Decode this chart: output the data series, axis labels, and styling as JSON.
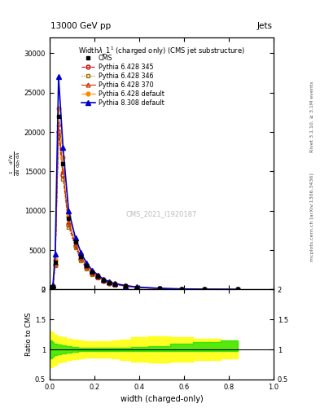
{
  "title": "13000 GeV pp",
  "title_right": "Jets",
  "plot_title": "Width$\\lambda\\_1^1$ (charged only) (CMS jet substructure)",
  "xlabel": "width (charged-only)",
  "watermark": "CMS_2021_I1920187",
  "rivet_label": "Rivet 3.1.10, ≥ 3.1M events",
  "arxiv_label": "mcplots.cern.ch [arXiv:1306.3436]",
  "ylim_main": [
    0,
    32000
  ],
  "ylim_ratio": [
    0.5,
    2.0
  ],
  "xlim": [
    0.0,
    1.0
  ],
  "yticks_main": [
    0,
    5000,
    10000,
    15000,
    20000,
    25000,
    30000
  ],
  "yticks_ratio": [
    0.5,
    1.0,
    1.5,
    2.0
  ],
  "cms_data_x": [
    0.005,
    0.015,
    0.025,
    0.04,
    0.06,
    0.085,
    0.115,
    0.14,
    0.165,
    0.19,
    0.215,
    0.24,
    0.265,
    0.29,
    0.34,
    0.39,
    0.49,
    0.59,
    0.69,
    0.84
  ],
  "cms_data_y": [
    200,
    400,
    3500,
    22000,
    16000,
    9000,
    6000,
    4200,
    3000,
    2200,
    1700,
    1200,
    900,
    700,
    460,
    280,
    130,
    65,
    30,
    12
  ],
  "py6_345_x": [
    0.005,
    0.015,
    0.025,
    0.04,
    0.06,
    0.085,
    0.115,
    0.14,
    0.165,
    0.19,
    0.215,
    0.24,
    0.265,
    0.29,
    0.34,
    0.39,
    0.49,
    0.59,
    0.69,
    0.84
  ],
  "py6_345_y": [
    180,
    350,
    3200,
    20000,
    14500,
    8200,
    5500,
    3900,
    2800,
    2050,
    1550,
    1100,
    820,
    630,
    420,
    250,
    120,
    58,
    27,
    10
  ],
  "py6_346_x": [
    0.005,
    0.015,
    0.025,
    0.04,
    0.06,
    0.085,
    0.115,
    0.14,
    0.165,
    0.19,
    0.215,
    0.24,
    0.265,
    0.29,
    0.34,
    0.39,
    0.49,
    0.59,
    0.69,
    0.84
  ],
  "py6_346_y": [
    160,
    300,
    3000,
    19500,
    14000,
    7900,
    5300,
    3700,
    2650,
    1950,
    1480,
    1050,
    790,
    600,
    400,
    240,
    115,
    55,
    25,
    9
  ],
  "py6_370_x": [
    0.005,
    0.015,
    0.025,
    0.04,
    0.06,
    0.085,
    0.115,
    0.14,
    0.165,
    0.19,
    0.215,
    0.24,
    0.265,
    0.29,
    0.34,
    0.39,
    0.49,
    0.59,
    0.69,
    0.84
  ],
  "py6_370_y": [
    190,
    370,
    3400,
    21000,
    15000,
    8600,
    5800,
    4100,
    2900,
    2150,
    1620,
    1150,
    860,
    660,
    440,
    265,
    128,
    62,
    29,
    11
  ],
  "py6_def_x": [
    0.005,
    0.015,
    0.025,
    0.04,
    0.06,
    0.085,
    0.115,
    0.14,
    0.165,
    0.19,
    0.215,
    0.24,
    0.265,
    0.29,
    0.34,
    0.39,
    0.49,
    0.59,
    0.69,
    0.84
  ],
  "py6_def_y": [
    220,
    450,
    3800,
    23000,
    16800,
    9400,
    6300,
    4500,
    3200,
    2350,
    1780,
    1270,
    950,
    730,
    480,
    295,
    140,
    70,
    32,
    12
  ],
  "py8_def_x": [
    0.005,
    0.015,
    0.025,
    0.04,
    0.06,
    0.085,
    0.115,
    0.14,
    0.165,
    0.19,
    0.215,
    0.24,
    0.265,
    0.29,
    0.34,
    0.39,
    0.49,
    0.59,
    0.69,
    0.84
  ],
  "py8_def_y": [
    250,
    550,
    4500,
    27000,
    18000,
    10000,
    6600,
    4700,
    3350,
    2450,
    1850,
    1320,
    990,
    760,
    500,
    310,
    150,
    76,
    36,
    14
  ],
  "cms_color": "#000000",
  "py6_345_color": "#cc0000",
  "py6_346_color": "#997700",
  "py6_370_color": "#cc3300",
  "py6_def_color": "#ff8800",
  "py8_def_color": "#0000cc",
  "ratio_x": [
    0.005,
    0.015,
    0.025,
    0.04,
    0.06,
    0.085,
    0.115,
    0.14,
    0.165,
    0.19,
    0.215,
    0.24,
    0.265,
    0.29,
    0.34,
    0.39,
    0.49,
    0.59,
    0.69,
    0.84
  ],
  "ratio_green_lo": [
    0.85,
    0.88,
    0.9,
    0.92,
    0.93,
    0.95,
    0.96,
    0.97,
    0.97,
    0.97,
    0.97,
    0.97,
    0.97,
    0.97,
    0.97,
    0.97,
    0.97,
    0.97,
    0.97,
    0.97
  ],
  "ratio_green_hi": [
    1.15,
    1.12,
    1.1,
    1.08,
    1.07,
    1.05,
    1.04,
    1.03,
    1.03,
    1.03,
    1.03,
    1.03,
    1.03,
    1.03,
    1.03,
    1.04,
    1.06,
    1.09,
    1.12,
    1.15
  ],
  "ratio_yellow_lo": [
    0.7,
    0.72,
    0.75,
    0.78,
    0.8,
    0.82,
    0.84,
    0.85,
    0.86,
    0.86,
    0.86,
    0.86,
    0.86,
    0.85,
    0.83,
    0.8,
    0.78,
    0.8,
    0.82,
    0.85
  ],
  "ratio_yellow_hi": [
    1.3,
    1.28,
    1.25,
    1.22,
    1.2,
    1.18,
    1.16,
    1.15,
    1.14,
    1.14,
    1.14,
    1.14,
    1.14,
    1.15,
    1.17,
    1.2,
    1.22,
    1.2,
    1.18,
    1.15
  ],
  "background_color": "#ffffff"
}
